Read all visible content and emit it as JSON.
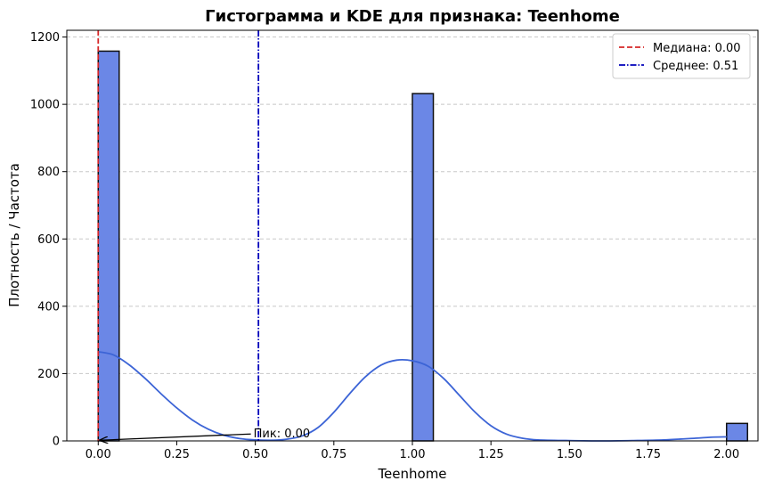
{
  "chart_data": {
    "type": "bar",
    "title": "Гистограмма и KDE для признака: Teenhome",
    "xlabel": "Teenhome",
    "ylabel": "Плотность / Частота",
    "xlim": [
      -0.1,
      2.1
    ],
    "ylim": [
      0,
      1220
    ],
    "xticks": [
      0.0,
      0.25,
      0.5,
      0.75,
      1.0,
      1.25,
      1.5,
      1.75,
      2.0
    ],
    "xtick_labels": [
      "0.00",
      "0.25",
      "0.50",
      "0.75",
      "1.00",
      "1.25",
      "1.50",
      "1.75",
      "2.00"
    ],
    "yticks": [
      0,
      200,
      400,
      600,
      800,
      1000,
      1200
    ],
    "ytick_labels": [
      "0",
      "200",
      "400",
      "600",
      "800",
      "1000",
      "1200"
    ],
    "grid": "y-dashed",
    "legend_placement": "top-right",
    "bin_width": 0.0667,
    "bars": [
      {
        "x": 0.0,
        "value": 1158
      },
      {
        "x": 1.0,
        "value": 1032
      },
      {
        "x": 2.0,
        "value": 52
      }
    ],
    "kde": {
      "x": [
        0.0,
        0.05,
        0.1,
        0.15,
        0.2,
        0.25,
        0.3,
        0.35,
        0.4,
        0.45,
        0.5,
        0.55,
        0.6,
        0.65,
        0.7,
        0.75,
        0.8,
        0.85,
        0.9,
        0.95,
        1.0,
        1.05,
        1.1,
        1.15,
        1.2,
        1.25,
        1.3,
        1.35,
        1.4,
        1.5,
        1.6,
        1.7,
        1.8,
        1.9,
        1.95,
        2.0
      ],
      "y": [
        265,
        255,
        225,
        185,
        140,
        98,
        62,
        35,
        17,
        7,
        3,
        2,
        5,
        15,
        40,
        85,
        140,
        190,
        225,
        240,
        238,
        222,
        185,
        135,
        85,
        45,
        20,
        8,
        3,
        1,
        0,
        1,
        3,
        8,
        11,
        12
      ]
    },
    "median": {
      "value": 0.0,
      "label": "Медиана: 0.00",
      "color": "#d62728"
    },
    "mean": {
      "value": 0.51,
      "label": "Среднее: 0.51",
      "color": "#0000bb"
    },
    "annotation": {
      "text": "Пик: 0.00",
      "point": [
        0.0,
        2
      ],
      "text_pos": [
        0.5,
        10
      ]
    },
    "colors": {
      "bar_fill": "#6b87e6",
      "bar_edge": "#111111",
      "kde": "#3c64d6"
    }
  }
}
